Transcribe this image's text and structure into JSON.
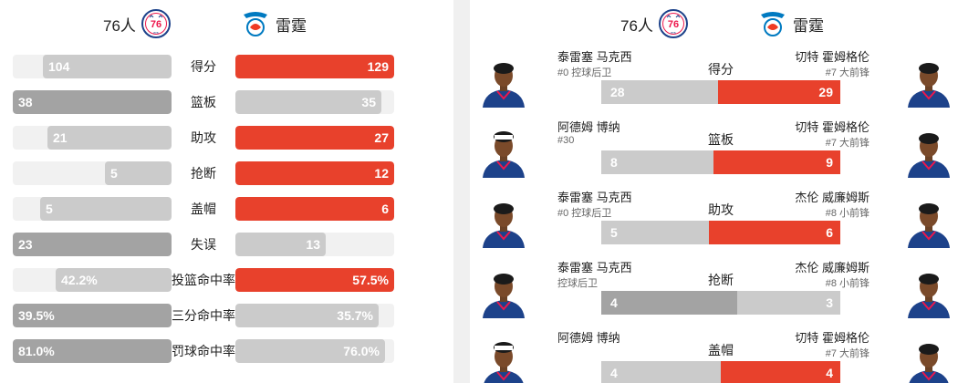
{
  "left": {
    "home_team": "76人",
    "away_team": "雷霆",
    "stats": [
      {
        "label": "得分",
        "home": "104",
        "away": "129",
        "home_frac": 0.81,
        "away_frac": 1.0,
        "winner": "away"
      },
      {
        "label": "篮板",
        "home": "38",
        "away": "35",
        "home_frac": 1.0,
        "away_frac": 0.92,
        "winner": "home"
      },
      {
        "label": "助攻",
        "home": "21",
        "away": "27",
        "home_frac": 0.78,
        "away_frac": 1.0,
        "winner": "away"
      },
      {
        "label": "抢断",
        "home": "5",
        "away": "12",
        "home_frac": 0.42,
        "away_frac": 1.0,
        "winner": "away"
      },
      {
        "label": "盖帽",
        "home": "5",
        "away": "6",
        "home_frac": 0.83,
        "away_frac": 1.0,
        "winner": "away"
      },
      {
        "label": "失误",
        "home": "23",
        "away": "13",
        "home_frac": 1.0,
        "away_frac": 0.57,
        "winner": "home"
      },
      {
        "label": "投篮命中率",
        "home": "42.2%",
        "away": "57.5%",
        "home_frac": 0.73,
        "away_frac": 1.0,
        "winner": "away"
      },
      {
        "label": "三分命中率",
        "home": "39.5%",
        "away": "35.7%",
        "home_frac": 1.0,
        "away_frac": 0.9,
        "winner": "home"
      },
      {
        "label": "罚球命中率",
        "home": "81.0%",
        "away": "76.0%",
        "home_frac": 1.0,
        "away_frac": 0.94,
        "winner": "home"
      }
    ]
  },
  "right": {
    "home_team": "76人",
    "away_team": "雷霆",
    "leaders": [
      {
        "stat": "得分",
        "home_player": "泰雷塞 马克西",
        "home_meta": "#0 控球后卫",
        "away_player": "切特 霍姆格伦",
        "away_meta": "#7 大前锋",
        "home_val": "28",
        "away_val": "29",
        "home_frac": 0.49,
        "away_frac": 0.51,
        "winner": "away",
        "home_jersey": "#1d428a",
        "away_jersey": "#1d428a"
      },
      {
        "stat": "篮板",
        "home_player": "阿德姆 博纳",
        "home_meta": "#30",
        "away_player": "切特 霍姆格伦",
        "away_meta": "#7 大前锋",
        "home_val": "8",
        "away_val": "9",
        "home_frac": 0.47,
        "away_frac": 0.53,
        "winner": "away",
        "home_jersey": "#1d428a",
        "away_jersey": "#1d428a"
      },
      {
        "stat": "助攻",
        "home_player": "泰雷塞 马克西",
        "home_meta": "#0 控球后卫",
        "away_player": "杰伦 威廉姆斯",
        "away_meta": "#8 小前锋",
        "home_val": "5",
        "away_val": "6",
        "home_frac": 0.45,
        "away_frac": 0.55,
        "winner": "away",
        "home_jersey": "#1d428a",
        "away_jersey": "#1d428a"
      },
      {
        "stat": "抢断",
        "home_player": "泰雷塞 马克西",
        "home_meta": "控球后卫",
        "away_player": "杰伦 威廉姆斯",
        "away_meta": "#8 小前锋",
        "home_val": "4",
        "away_val": "3",
        "home_frac": 0.57,
        "away_frac": 0.43,
        "winner": "home",
        "home_jersey": "#1d428a",
        "away_jersey": "#1d428a"
      },
      {
        "stat": "盖帽",
        "home_player": "阿德姆 博纳",
        "home_meta": "",
        "away_player": "切特 霍姆格伦",
        "away_meta": "#7 大前锋",
        "home_val": "4",
        "away_val": "4",
        "home_frac": 0.5,
        "away_frac": 0.5,
        "winner": "away",
        "home_jersey": "#1d428a",
        "away_jersey": "#1d428a"
      }
    ]
  },
  "colors": {
    "accent_red": "#e8412c",
    "bar_gray_dark": "#a3a3a3",
    "bar_gray_light": "#cbcbcb",
    "track": "#f1f1f1",
    "sixers_blue": "#1d428a",
    "sixers_red": "#ed174c",
    "thunder_blue": "#007ac1",
    "thunder_orange": "#ef3b24"
  }
}
